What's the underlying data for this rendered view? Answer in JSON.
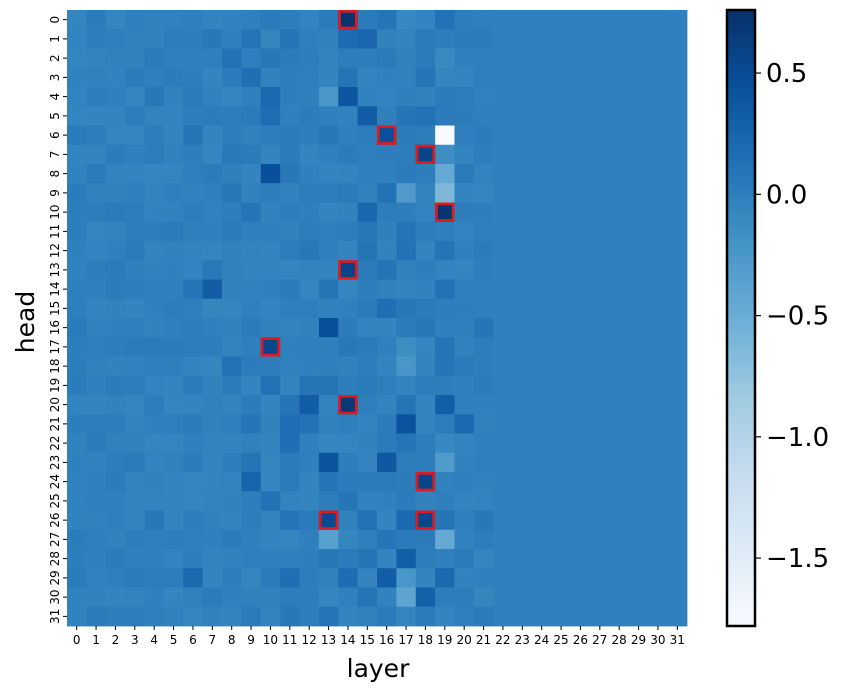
{
  "chart_data": {
    "type": "heatmap",
    "title": "",
    "xlabel": "layer",
    "ylabel": "head",
    "x": [
      "0",
      "1",
      "2",
      "3",
      "4",
      "5",
      "6",
      "7",
      "8",
      "9",
      "10",
      "11",
      "12",
      "13",
      "14",
      "15",
      "16",
      "17",
      "18",
      "19",
      "20",
      "21",
      "22",
      "23",
      "24",
      "25",
      "26",
      "27",
      "28",
      "29",
      "30",
      "31"
    ],
    "y": [
      "0",
      "1",
      "2",
      "3",
      "4",
      "5",
      "6",
      "7",
      "8",
      "9",
      "10",
      "11",
      "12",
      "13",
      "14",
      "15",
      "16",
      "17",
      "18",
      "19",
      "20",
      "21",
      "22",
      "23",
      "24",
      "25",
      "26",
      "27",
      "28",
      "29",
      "30",
      "31"
    ],
    "colorbar": {
      "min": -1.78,
      "max": 0.76,
      "ticks": [
        0.5,
        0.0,
        -0.5,
        -1.0,
        -1.5
      ],
      "tick_labels": [
        "0.5",
        "0.0",
        "−0.5",
        "−1.0",
        "−1.5"
      ],
      "colormap": "Blues"
    },
    "base_value": -0.02,
    "cells": [
      {
        "layer": 14,
        "head": 0,
        "value": 0.72
      },
      {
        "layer": 16,
        "head": 0,
        "value": 0.08
      },
      {
        "layer": 17,
        "head": 0,
        "value": -0.1
      },
      {
        "layer": 19,
        "head": 0,
        "value": 0.12
      },
      {
        "layer": 15,
        "head": 0,
        "value": 0.02
      },
      {
        "layer": 18,
        "head": 0,
        "value": -0.06
      },
      {
        "layer": 14,
        "head": 1,
        "value": 0.18
      },
      {
        "layer": 15,
        "head": 1,
        "value": 0.22
      },
      {
        "layer": 9,
        "head": 1,
        "value": 0.1
      },
      {
        "layer": 7,
        "head": 1,
        "value": 0.06
      },
      {
        "layer": 11,
        "head": 1,
        "value": 0.08
      },
      {
        "layer": 8,
        "head": 2,
        "value": 0.12
      },
      {
        "layer": 10,
        "head": 2,
        "value": 0.06
      },
      {
        "layer": 19,
        "head": 2,
        "value": -0.12
      },
      {
        "layer": 9,
        "head": 3,
        "value": 0.14
      },
      {
        "layer": 14,
        "head": 3,
        "value": 0.1
      },
      {
        "layer": 18,
        "head": 3,
        "value": 0.08
      },
      {
        "layer": 10,
        "head": 4,
        "value": 0.2
      },
      {
        "layer": 13,
        "head": 4,
        "value": -0.25
      },
      {
        "layer": 14,
        "head": 4,
        "value": 0.38
      },
      {
        "layer": 4,
        "head": 4,
        "value": 0.06
      },
      {
        "layer": 15,
        "head": 5,
        "value": 0.32
      },
      {
        "layer": 10,
        "head": 5,
        "value": 0.15
      },
      {
        "layer": 17,
        "head": 5,
        "value": 0.08
      },
      {
        "layer": 18,
        "head": 5,
        "value": 0.12
      },
      {
        "layer": 16,
        "head": 6,
        "value": 0.45
      },
      {
        "layer": 19,
        "head": 6,
        "value": -1.78
      },
      {
        "layer": 6,
        "head": 6,
        "value": 0.08
      },
      {
        "layer": 13,
        "head": 6,
        "value": 0.06
      },
      {
        "layer": 18,
        "head": 7,
        "value": 0.55
      },
      {
        "layer": 19,
        "head": 7,
        "value": -0.15
      },
      {
        "layer": 8,
        "head": 7,
        "value": 0.05
      },
      {
        "layer": 10,
        "head": 8,
        "value": 0.45
      },
      {
        "layer": 19,
        "head": 8,
        "value": -0.45
      },
      {
        "layer": 11,
        "head": 8,
        "value": 0.06
      },
      {
        "layer": 17,
        "head": 9,
        "value": -0.3
      },
      {
        "layer": 19,
        "head": 9,
        "value": -0.62
      },
      {
        "layer": 16,
        "head": 9,
        "value": 0.12
      },
      {
        "layer": 8,
        "head": 9,
        "value": 0.06
      },
      {
        "layer": 19,
        "head": 10,
        "value": 0.72
      },
      {
        "layer": 15,
        "head": 10,
        "value": 0.22
      },
      {
        "layer": 9,
        "head": 10,
        "value": 0.1
      },
      {
        "layer": 13,
        "head": 10,
        "value": -0.06
      },
      {
        "layer": 17,
        "head": 11,
        "value": 0.1
      },
      {
        "layer": 15,
        "head": 11,
        "value": 0.06
      },
      {
        "layer": 19,
        "head": 12,
        "value": 0.1
      },
      {
        "layer": 17,
        "head": 12,
        "value": 0.12
      },
      {
        "layer": 15,
        "head": 12,
        "value": 0.1
      },
      {
        "layer": 12,
        "head": 12,
        "value": 0.06
      },
      {
        "layer": 14,
        "head": 13,
        "value": 0.58
      },
      {
        "layer": 7,
        "head": 13,
        "value": 0.05
      },
      {
        "layer": 16,
        "head": 13,
        "value": 0.1
      },
      {
        "layer": 7,
        "head": 14,
        "value": 0.32
      },
      {
        "layer": 6,
        "head": 14,
        "value": 0.1
      },
      {
        "layer": 19,
        "head": 14,
        "value": 0.12
      },
      {
        "layer": 13,
        "head": 14,
        "value": 0.08
      },
      {
        "layer": 16,
        "head": 15,
        "value": 0.14
      },
      {
        "layer": 17,
        "head": 15,
        "value": 0.06
      },
      {
        "layer": 13,
        "head": 16,
        "value": 0.46
      },
      {
        "layer": 21,
        "head": 16,
        "value": 0.08
      },
      {
        "layer": 18,
        "head": 16,
        "value": 0.06
      },
      {
        "layer": 10,
        "head": 17,
        "value": 0.55
      },
      {
        "layer": 17,
        "head": 17,
        "value": -0.15
      },
      {
        "layer": 19,
        "head": 17,
        "value": 0.1
      },
      {
        "layer": 14,
        "head": 17,
        "value": 0.06
      },
      {
        "layer": 17,
        "head": 18,
        "value": -0.25
      },
      {
        "layer": 8,
        "head": 18,
        "value": 0.12
      },
      {
        "layer": 18,
        "head": 18,
        "value": -0.06
      },
      {
        "layer": 19,
        "head": 18,
        "value": 0.08
      },
      {
        "layer": 10,
        "head": 19,
        "value": 0.12
      },
      {
        "layer": 12,
        "head": 19,
        "value": 0.08
      },
      {
        "layer": 13,
        "head": 19,
        "value": 0.1
      },
      {
        "layer": 14,
        "head": 20,
        "value": 0.68
      },
      {
        "layer": 12,
        "head": 20,
        "value": 0.32
      },
      {
        "layer": 19,
        "head": 20,
        "value": 0.3
      },
      {
        "layer": 17,
        "head": 20,
        "value": 0.1
      },
      {
        "layer": 11,
        "head": 20,
        "value": 0.1
      },
      {
        "layer": 17,
        "head": 21,
        "value": 0.42
      },
      {
        "layer": 20,
        "head": 21,
        "value": 0.2
      },
      {
        "layer": 11,
        "head": 21,
        "value": 0.14
      },
      {
        "layer": 9,
        "head": 21,
        "value": 0.08
      },
      {
        "layer": 12,
        "head": 21,
        "value": 0.12
      },
      {
        "layer": 11,
        "head": 22,
        "value": 0.14
      },
      {
        "layer": 19,
        "head": 22,
        "value": -0.1
      },
      {
        "layer": 17,
        "head": 22,
        "value": 0.08
      },
      {
        "layer": 13,
        "head": 23,
        "value": 0.4
      },
      {
        "layer": 16,
        "head": 23,
        "value": 0.36
      },
      {
        "layer": 19,
        "head": 23,
        "value": -0.3
      },
      {
        "layer": 9,
        "head": 23,
        "value": 0.1
      },
      {
        "layer": 18,
        "head": 24,
        "value": 0.55
      },
      {
        "layer": 9,
        "head": 24,
        "value": 0.24
      },
      {
        "layer": 13,
        "head": 24,
        "value": 0.08
      },
      {
        "layer": 10,
        "head": 25,
        "value": 0.12
      },
      {
        "layer": 14,
        "head": 25,
        "value": 0.08
      },
      {
        "layer": 13,
        "head": 26,
        "value": 0.52
      },
      {
        "layer": 18,
        "head": 26,
        "value": 0.55
      },
      {
        "layer": 17,
        "head": 26,
        "value": 0.2
      },
      {
        "layer": 15,
        "head": 26,
        "value": 0.12
      },
      {
        "layer": 4,
        "head": 26,
        "value": 0.06
      },
      {
        "layer": 19,
        "head": 26,
        "value": 0.1
      },
      {
        "layer": 21,
        "head": 26,
        "value": 0.06
      },
      {
        "layer": 11,
        "head": 26,
        "value": 0.1
      },
      {
        "layer": 13,
        "head": 27,
        "value": -0.35
      },
      {
        "layer": 19,
        "head": 27,
        "value": -0.45
      },
      {
        "layer": 16,
        "head": 27,
        "value": 0.08
      },
      {
        "layer": 17,
        "head": 28,
        "value": 0.3
      },
      {
        "layer": 15,
        "head": 28,
        "value": 0.08
      },
      {
        "layer": 13,
        "head": 28,
        "value": 0.06
      },
      {
        "layer": 6,
        "head": 29,
        "value": 0.2
      },
      {
        "layer": 16,
        "head": 29,
        "value": 0.32
      },
      {
        "layer": 17,
        "head": 29,
        "value": -0.25
      },
      {
        "layer": 14,
        "head": 29,
        "value": 0.16
      },
      {
        "layer": 19,
        "head": 29,
        "value": 0.2
      },
      {
        "layer": 11,
        "head": 29,
        "value": 0.14
      },
      {
        "layer": 17,
        "head": 30,
        "value": -0.4
      },
      {
        "layer": 18,
        "head": 30,
        "value": 0.28
      },
      {
        "layer": 15,
        "head": 30,
        "value": 0.1
      },
      {
        "layer": 13,
        "head": 30,
        "value": -0.08
      },
      {
        "layer": 13,
        "head": 31,
        "value": 0.1
      },
      {
        "layer": 11,
        "head": 31,
        "value": 0.06
      }
    ],
    "highlighted": [
      {
        "layer": 14,
        "head": 0
      },
      {
        "layer": 16,
        "head": 6
      },
      {
        "layer": 18,
        "head": 7
      },
      {
        "layer": 19,
        "head": 10
      },
      {
        "layer": 14,
        "head": 13
      },
      {
        "layer": 10,
        "head": 17
      },
      {
        "layer": 14,
        "head": 20
      },
      {
        "layer": 18,
        "head": 24
      },
      {
        "layer": 13,
        "head": 26
      },
      {
        "layer": 18,
        "head": 26
      }
    ],
    "highlight_color": "#e31a1c"
  }
}
